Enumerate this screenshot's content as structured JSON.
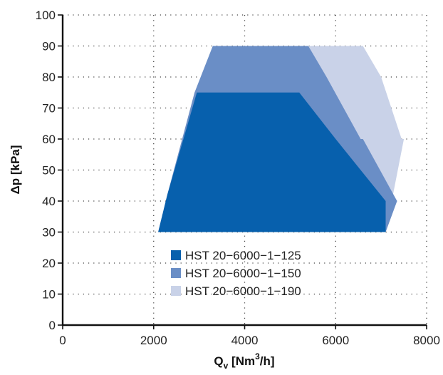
{
  "chart_data": {
    "type": "area",
    "xlabel": {
      "main": "Q",
      "sub": "v",
      "pre": " [Nm",
      "sup": "3",
      "post": "/h]"
    },
    "ylabel": "Δp [kPa]",
    "xlim": [
      0,
      8000
    ],
    "ylim": [
      0,
      100
    ],
    "xticks": [
      0,
      2000,
      4000,
      6000,
      8000
    ],
    "yticks": [
      0,
      10,
      20,
      30,
      40,
      50,
      60,
      70,
      80,
      90,
      100
    ],
    "grid": true,
    "legend_position": "lower-center",
    "series": [
      {
        "name": "HST 20−6000−1−190",
        "color": "#c9d2e8",
        "polygon": [
          [
            2100,
            30
          ],
          [
            2300,
            42
          ],
          [
            2900,
            75
          ],
          [
            3300,
            90
          ],
          [
            6600,
            90
          ],
          [
            7000,
            80
          ],
          [
            7450,
            60
          ],
          [
            7500,
            60
          ],
          [
            7100,
            30
          ]
        ]
      },
      {
        "name": "HST 20−6000−1−150",
        "color": "#6a8ec6",
        "polygon": [
          [
            2100,
            30
          ],
          [
            2300,
            42
          ],
          [
            2900,
            75
          ],
          [
            3300,
            90
          ],
          [
            5400,
            90
          ],
          [
            5800,
            80
          ],
          [
            6550,
            60
          ],
          [
            6600,
            60
          ],
          [
            7350,
            40
          ],
          [
            7100,
            30
          ]
        ]
      },
      {
        "name": "HST 20−6000−1−125",
        "color": "#0760ad",
        "polygon": [
          [
            2100,
            30
          ],
          [
            2300,
            42
          ],
          [
            2950,
            75
          ],
          [
            5200,
            75
          ],
          [
            6000,
            60
          ],
          [
            7100,
            40
          ],
          [
            7100,
            30
          ]
        ]
      }
    ]
  }
}
